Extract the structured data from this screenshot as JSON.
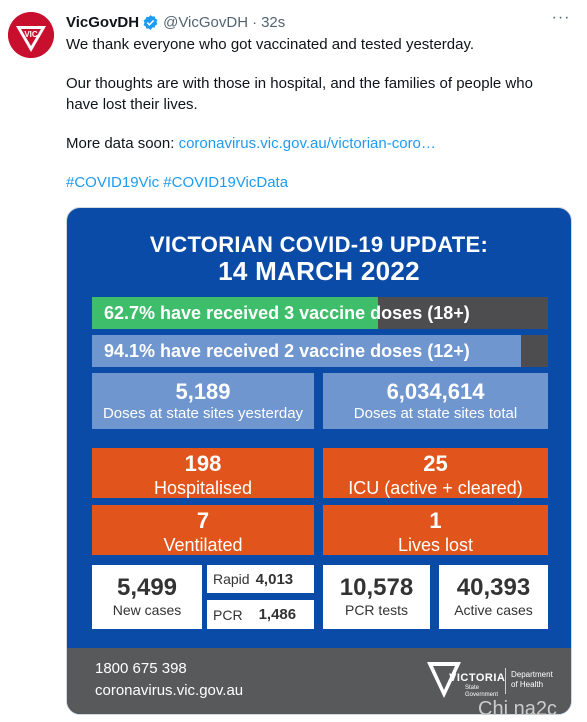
{
  "tweet": {
    "author_name": "VicGovDH",
    "handle": "@VicGovDH",
    "separator": "·",
    "time": "32s",
    "avatar_text": "VIC",
    "more_glyph": "···",
    "line1": "We thank everyone who got vaccinated and tested yesterday.",
    "line2": "Our thoughts are with those in hospital, and the families of people who have lost their lives.",
    "line3_prefix": "More data soon: ",
    "line3_link": "coronavirus.vic.gov.au/victorian-coro…",
    "hashtag1": "#COVID19Vic",
    "hashtag2": "#COVID19VicData"
  },
  "card": {
    "title_line1": "VICTORIAN COVID-19 UPDATE:",
    "title_line2": "14 MARCH 2022",
    "bars": [
      {
        "label": "62.7% have received 3 vaccine doses (18+)",
        "percent": 62.7,
        "color": "#3ebd6a"
      },
      {
        "label": "94.1% have received 2 vaccine doses (12+)",
        "percent": 94.1,
        "color": "#6f96cf"
      }
    ],
    "doses_yesterday": {
      "value": "5,189",
      "label": "Doses at state sites yesterday"
    },
    "doses_total": {
      "value": "6,034,614",
      "label": "Doses at state sites total"
    },
    "hospitalised": {
      "value": "198",
      "label": "Hospitalised"
    },
    "icu": {
      "value": "25",
      "label": "ICU (active + cleared)"
    },
    "ventilated": {
      "value": "7",
      "label": "Ventilated"
    },
    "lives_lost": {
      "value": "1",
      "label": "Lives lost"
    },
    "new_cases": {
      "value": "5,499",
      "label": "New cases"
    },
    "rapid": {
      "label": "Rapid",
      "value": "4,013"
    },
    "pcr": {
      "label": "PCR",
      "value": "1,486"
    },
    "pcr_tests": {
      "value": "10,578",
      "label": "PCR tests"
    },
    "active_cases": {
      "value": "40,393",
      "label": "Active cases"
    },
    "footer": {
      "phone": "1800 675 398",
      "site": "coronavirus.vic.gov.au",
      "logo_word": "VICTORIA",
      "logo_sub": "State Government",
      "department": "Department of Health"
    }
  },
  "watermark": "Chi na2c"
}
